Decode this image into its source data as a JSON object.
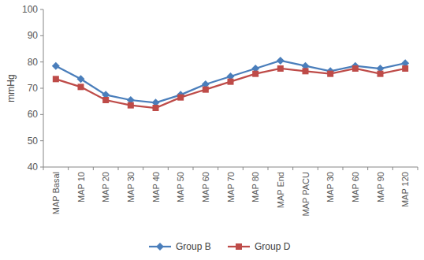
{
  "chart_data": {
    "type": "line",
    "y_label": "mmHg",
    "categories": [
      "MAP Basal",
      "MAP 10",
      "MAP 20",
      "MAP 30",
      "MAP 40",
      "MAP 50",
      "MAP 60",
      "MAP 70",
      "MAP 80",
      "MAP End",
      "MAP PACU",
      "MAP 30",
      "MAP 60",
      "MAP 90",
      "MAP 120"
    ],
    "series": [
      {
        "name": "Group B",
        "color": "#4a7ebb",
        "marker": "diamond",
        "values": [
          78.5,
          73.5,
          67.5,
          65.5,
          64.5,
          67.5,
          71.5,
          74.5,
          77.5,
          80.5,
          78.5,
          76.5,
          78.5,
          77.5,
          79.5
        ]
      },
      {
        "name": "Group D",
        "color": "#be4b48",
        "marker": "square",
        "values": [
          73.5,
          70.5,
          65.5,
          63.5,
          62.5,
          66.5,
          69.5,
          72.5,
          75.5,
          77.5,
          76.5,
          75.5,
          77.5,
          75.5,
          77.5
        ]
      }
    ],
    "ylim": [
      40,
      100
    ],
    "yticks": [
      40,
      50,
      60,
      70,
      80,
      90,
      100
    ],
    "grid": false,
    "legend": "bottom"
  }
}
